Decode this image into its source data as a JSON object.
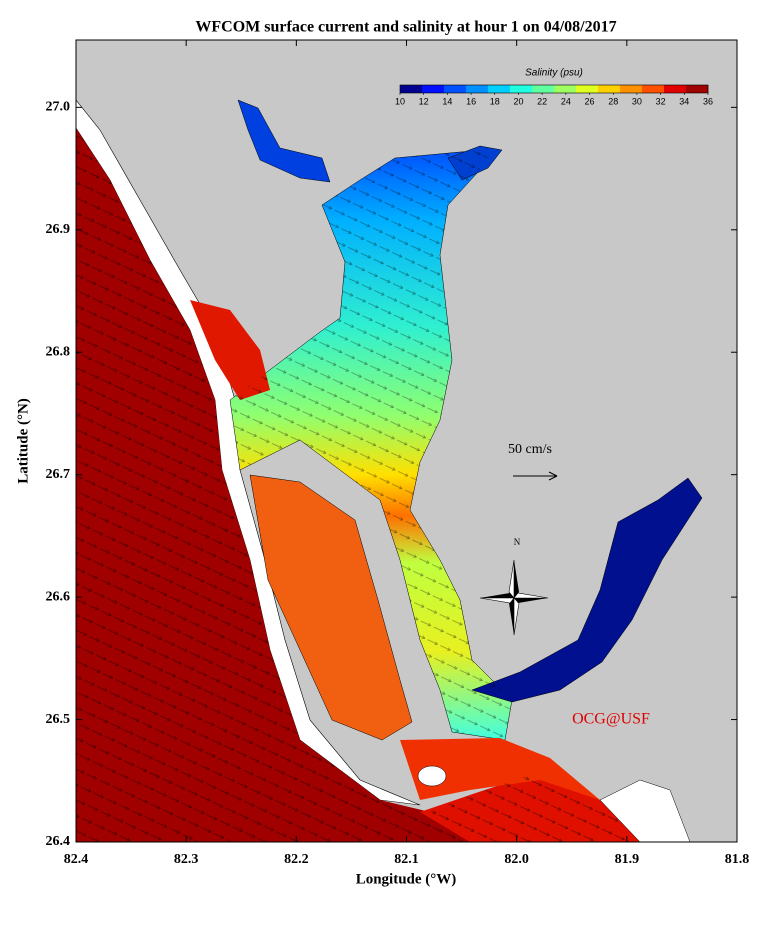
{
  "chart_data": {
    "type": "map",
    "title": "WFCOM surface current and salinity at hour 1 on 04/08/2017",
    "xlabel": "Longitude (°W)",
    "ylabel": "Latitude (°N)",
    "xlim": [
      82.4,
      81.8
    ],
    "ylim": [
      26.4,
      27.055
    ],
    "xticks": [
      82.4,
      82.3,
      82.2,
      82.1,
      {
        "value": 82,
        "label": "82.0"
      },
      81.9,
      81.8
    ],
    "yticks": [
      26.4,
      26.5,
      26.6,
      26.7,
      26.8,
      26.9,
      {
        "value": 27,
        "label": "27.0"
      }
    ],
    "colorbar": {
      "label": "Salinity (psu)",
      "lim": [
        10,
        36
      ],
      "ticks": [
        10,
        12,
        14,
        16,
        18,
        20,
        22,
        24,
        26,
        28,
        30,
        32,
        34,
        36
      ],
      "colors": [
        "#00008f",
        "#0010ff",
        "#0050ff",
        "#0090ff",
        "#00d0ff",
        "#20ffdf",
        "#60ff9f",
        "#9fff60",
        "#dfff20",
        "#ffd000",
        "#ff9000",
        "#ff5000",
        "#e00000",
        "#9f0000"
      ]
    },
    "annotations": [
      "50 cm/s",
      "N",
      "OCG@USF"
    ]
  }
}
